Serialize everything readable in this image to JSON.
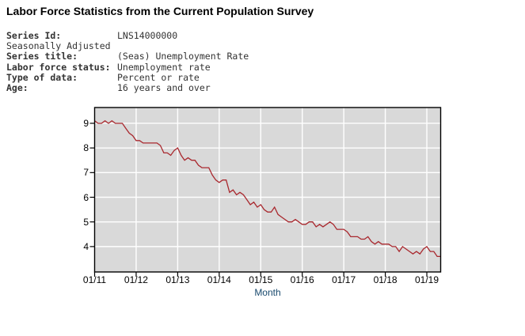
{
  "page": {
    "title": "Labor Force Statistics from the Current Population Survey"
  },
  "metadata": {
    "rows": [
      {
        "label": "Series Id:",
        "value": "LNS14000000",
        "bold": true
      },
      {
        "label": "Seasonally Adjusted",
        "value": "",
        "bold": false
      },
      {
        "label": "Series title:",
        "value": "(Seas) Unemployment Rate",
        "bold": true
      },
      {
        "label": "Labor force status:",
        "value": "Unemployment rate",
        "bold": true
      },
      {
        "label": "Type of data:",
        "value": "Percent or rate",
        "bold": true
      },
      {
        "label": "Age:",
        "value": "16 years and over",
        "bold": true
      }
    ]
  },
  "chart_data": {
    "type": "line",
    "title": "",
    "xlabel": "Month",
    "ylabel": "",
    "x_start": "01/2011",
    "x_end": "05/2019",
    "x_tick_labels": [
      "01/11",
      "01/12",
      "01/13",
      "01/14",
      "01/15",
      "01/16",
      "01/17",
      "01/18",
      "01/19"
    ],
    "months_between_ticks": 12,
    "y_ticks": [
      4,
      5,
      6,
      7,
      8,
      9
    ],
    "ylim": [
      2.97,
      9.64
    ],
    "grid": true,
    "legend_position": "none",
    "series": [
      {
        "name": "(Seas) Unemployment Rate",
        "values": [
          9.1,
          9.0,
          9.0,
          9.1,
          9.0,
          9.1,
          9.0,
          9.0,
          9.0,
          8.8,
          8.6,
          8.5,
          8.3,
          8.3,
          8.2,
          8.2,
          8.2,
          8.2,
          8.2,
          8.1,
          7.8,
          7.8,
          7.7,
          7.9,
          8.0,
          7.7,
          7.5,
          7.6,
          7.5,
          7.5,
          7.3,
          7.2,
          7.2,
          7.2,
          6.9,
          6.7,
          6.6,
          6.7,
          6.7,
          6.2,
          6.3,
          6.1,
          6.2,
          6.1,
          5.9,
          5.7,
          5.8,
          5.6,
          5.7,
          5.5,
          5.4,
          5.4,
          5.6,
          5.3,
          5.2,
          5.1,
          5.0,
          5.0,
          5.1,
          5.0,
          4.9,
          4.9,
          5.0,
          5.0,
          4.8,
          4.9,
          4.8,
          4.9,
          5.0,
          4.9,
          4.7,
          4.7,
          4.7,
          4.6,
          4.4,
          4.4,
          4.4,
          4.3,
          4.3,
          4.4,
          4.2,
          4.1,
          4.2,
          4.1,
          4.1,
          4.1,
          4.0,
          4.0,
          3.8,
          4.0,
          3.9,
          3.8,
          3.7,
          3.8,
          3.7,
          3.9,
          4.0,
          3.8,
          3.8,
          3.6,
          3.6
        ]
      }
    ],
    "colors": {
      "line": "#a9282e",
      "plot_bg": "#d9d9d9",
      "grid": "#ffffff",
      "axis": "#000000",
      "tick_label": "#000000",
      "xlabel_color": "#194a6e"
    }
  }
}
